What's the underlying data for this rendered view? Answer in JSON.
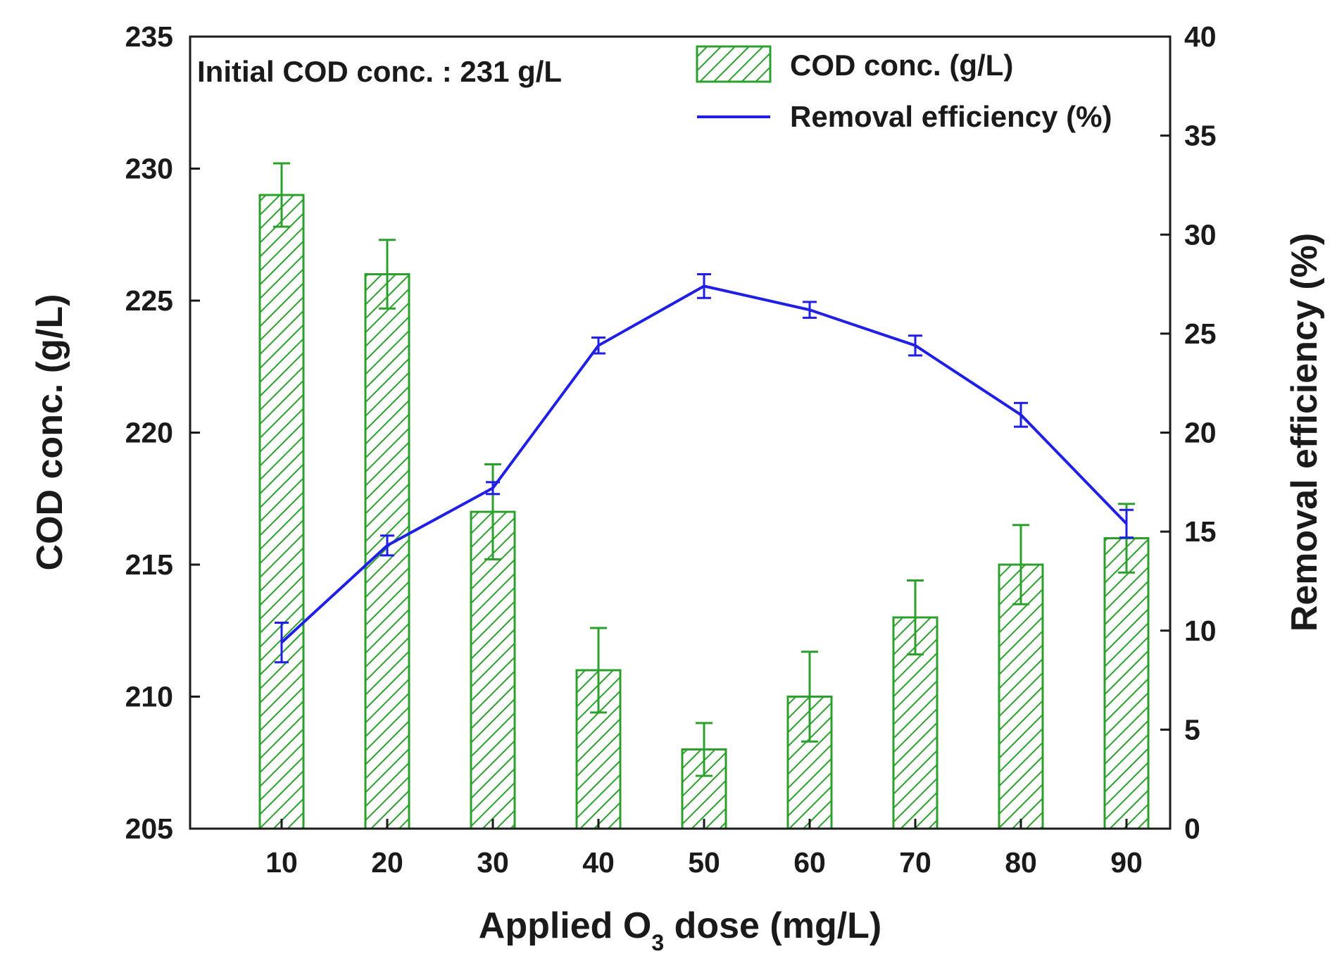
{
  "chart_data": {
    "type": "bar+line",
    "title": "",
    "annotation": "Initial COD conc. : 231 g/L",
    "xlabel": {
      "prefix": "Applied O",
      "subscript": "3",
      "suffix": " dose (mg/L)"
    },
    "ylabel_left": "COD conc. (g/L)",
    "ylabel_right": "Removal efficiency (%)",
    "categories": [
      "10",
      "20",
      "30",
      "40",
      "50",
      "60",
      "70",
      "80",
      "90"
    ],
    "ylim_left": [
      205,
      235
    ],
    "yticks_left": [
      "205",
      "210",
      "215",
      "220",
      "225",
      "230",
      "235"
    ],
    "ylim_right": [
      0,
      40
    ],
    "yticks_right": [
      "0",
      "5",
      "10",
      "15",
      "20",
      "25",
      "30",
      "35",
      "40"
    ],
    "series": [
      {
        "name": "COD conc. (g/L)",
        "kind": "bar",
        "axis": "left",
        "color": "#2ca02c",
        "values": [
          229,
          226,
          217,
          211,
          208,
          210,
          213,
          215,
          216
        ],
        "errors": [
          1.2,
          1.3,
          1.8,
          1.6,
          1.0,
          1.7,
          1.4,
          1.5,
          1.3
        ]
      },
      {
        "name": "Removal efficiency (%)",
        "kind": "line",
        "axis": "right",
        "color": "#1f1fe6",
        "values": [
          9.4,
          14.3,
          17.2,
          24.4,
          27.4,
          26.2,
          24.4,
          20.9,
          15.4
        ],
        "errors": [
          1.0,
          0.5,
          0.3,
          0.4,
          0.6,
          0.4,
          0.5,
          0.6,
          0.7
        ]
      }
    ]
  }
}
